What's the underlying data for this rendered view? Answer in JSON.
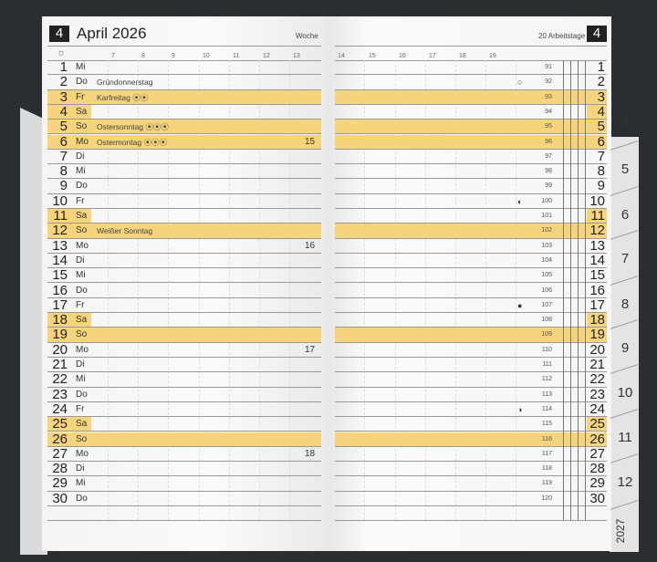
{
  "header": {
    "month_number": "4",
    "title": "April 2026",
    "week_label": "Woche",
    "workdays": "20 Arbeitstage"
  },
  "hours_left": [
    "7",
    "8",
    "9",
    "10",
    "11",
    "12",
    "13"
  ],
  "hours_right": [
    "14",
    "15",
    "16",
    "17",
    "18",
    "19"
  ],
  "colors": {
    "highlight": "#f5d47c",
    "background": "#2b2e30"
  },
  "days": [
    {
      "d": "1",
      "wd": "Mi",
      "doy": "91"
    },
    {
      "d": "2",
      "wd": "Do",
      "hol": "Gründonnerstag",
      "doy": "92",
      "moon": "○"
    },
    {
      "d": "3",
      "wd": "Fr",
      "hol": "Karfreitag ⦿⦿",
      "doy": "93",
      "hl": "full"
    },
    {
      "d": "4",
      "wd": "Sa",
      "doy": "94",
      "hl": "sat"
    },
    {
      "d": "5",
      "wd": "So",
      "hol": "Ostersonntag ⦿⦿⦿",
      "doy": "95",
      "hl": "full"
    },
    {
      "d": "6",
      "wd": "Mo",
      "hol": "Ostermontag ⦿⦿⦿",
      "kw": "15",
      "doy": "96",
      "hl": "full"
    },
    {
      "d": "7",
      "wd": "Di",
      "doy": "97"
    },
    {
      "d": "8",
      "wd": "Mi",
      "doy": "98"
    },
    {
      "d": "9",
      "wd": "Do",
      "doy": "99"
    },
    {
      "d": "10",
      "wd": "Fr",
      "doy": "100",
      "moon": "◐"
    },
    {
      "d": "11",
      "wd": "Sa",
      "doy": "101",
      "hl": "sat"
    },
    {
      "d": "12",
      "wd": "So",
      "hol": "Weißer Sonntag",
      "doy": "102",
      "hl": "full"
    },
    {
      "d": "13",
      "wd": "Mo",
      "kw": "16",
      "doy": "103"
    },
    {
      "d": "14",
      "wd": "Di",
      "doy": "104"
    },
    {
      "d": "15",
      "wd": "Mi",
      "doy": "105"
    },
    {
      "d": "16",
      "wd": "Do",
      "doy": "106"
    },
    {
      "d": "17",
      "wd": "Fr",
      "doy": "107",
      "moon": "●"
    },
    {
      "d": "18",
      "wd": "Sa",
      "doy": "108",
      "hl": "sat"
    },
    {
      "d": "19",
      "wd": "So",
      "doy": "109",
      "hl": "full"
    },
    {
      "d": "20",
      "wd": "Mo",
      "kw": "17",
      "doy": "110"
    },
    {
      "d": "21",
      "wd": "Di",
      "doy": "111"
    },
    {
      "d": "22",
      "wd": "Mi",
      "doy": "112"
    },
    {
      "d": "23",
      "wd": "Do",
      "doy": "113"
    },
    {
      "d": "24",
      "wd": "Fr",
      "doy": "114",
      "moon": "◑"
    },
    {
      "d": "25",
      "wd": "Sa",
      "doy": "115",
      "hl": "sat"
    },
    {
      "d": "26",
      "wd": "So",
      "doy": "116",
      "hl": "full"
    },
    {
      "d": "27",
      "wd": "Mo",
      "kw": "18",
      "doy": "117"
    },
    {
      "d": "28",
      "wd": "Di",
      "doy": "118"
    },
    {
      "d": "29",
      "wd": "Mi",
      "doy": "119"
    },
    {
      "d": "30",
      "wd": "Do",
      "doy": "120"
    }
  ],
  "tabs": [
    "4",
    "5",
    "6",
    "7",
    "8",
    "9",
    "10",
    "11",
    "12"
  ],
  "year_tab": "2027"
}
